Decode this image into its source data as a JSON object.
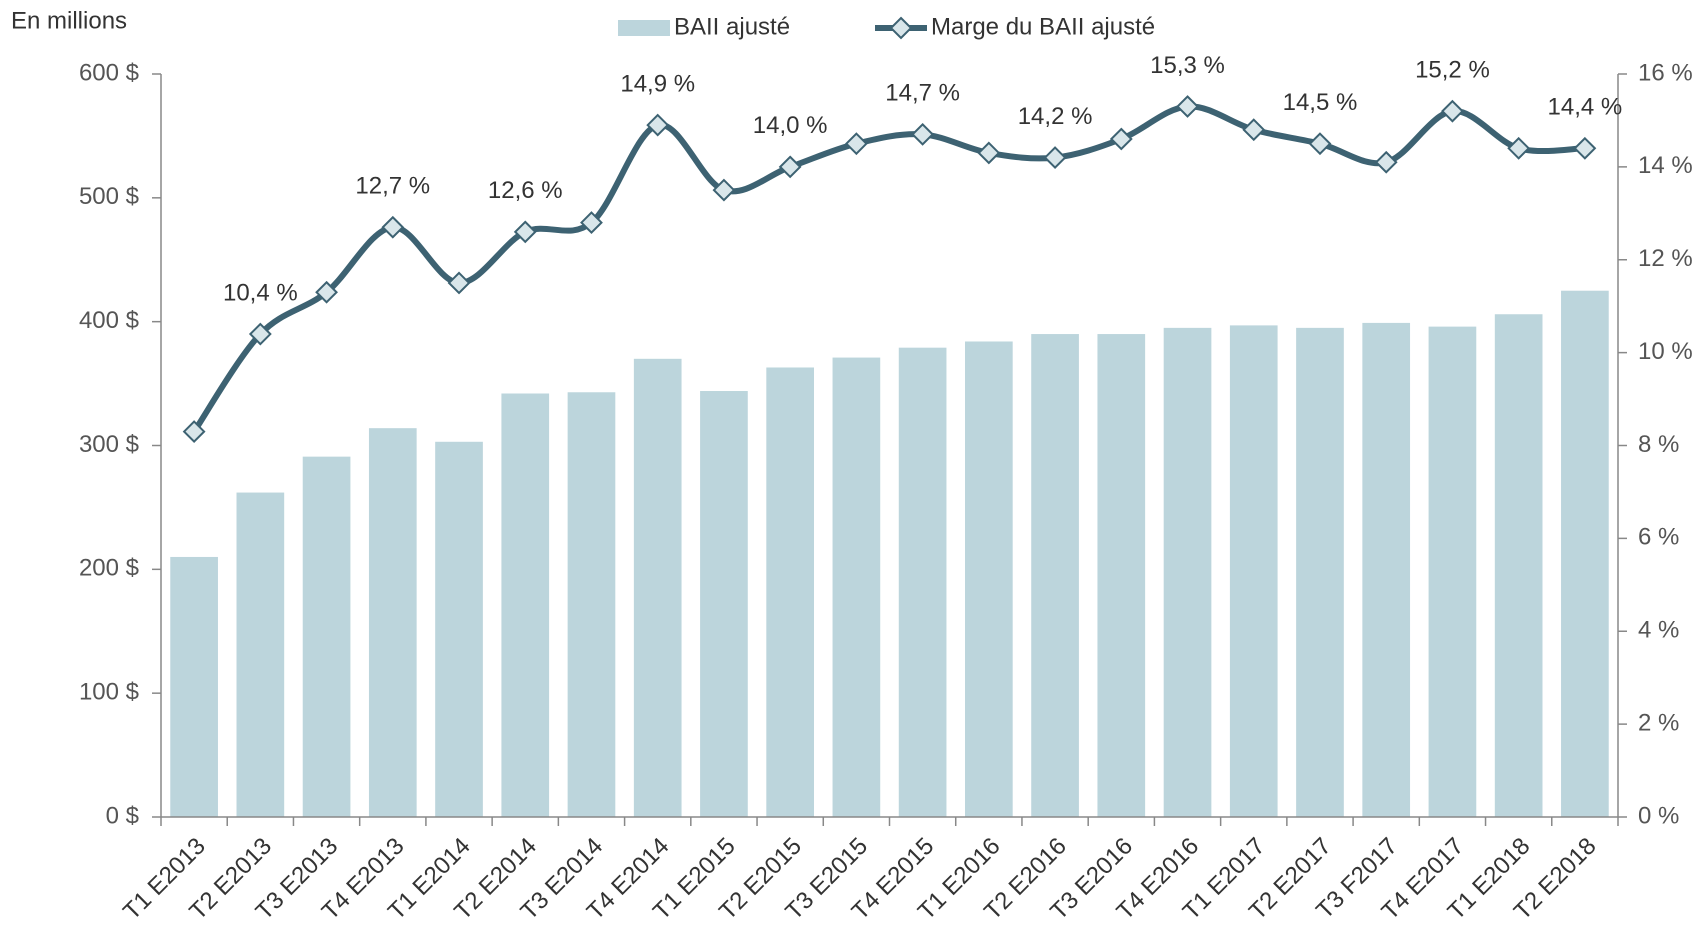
{
  "chart_data": {
    "type": "bar_line",
    "ylabel": "En millions",
    "categories": [
      "T1 E2013",
      "T2 E2013",
      "T3 E2013",
      "T4 E2013",
      "T1 E2014",
      "T2 E2014",
      "T3 E2014",
      "T4 E2014",
      "T1 E2015",
      "T2 E2015",
      "T3 E2015",
      "T4 E2015",
      "T1 E2016",
      "T2 E2016",
      "T3 E2016",
      "T4 E2016",
      "T1 E2017",
      "T2 E2017",
      "T3 F2017",
      "T4 E2017",
      "T1 E2018",
      "T2 E2018"
    ],
    "series": [
      {
        "name": "BAII ajusté",
        "type": "bar",
        "color": "#bcd5dc",
        "values": [
          210,
          262,
          291,
          314,
          303,
          342,
          343,
          370,
          344,
          363,
          371,
          379,
          384,
          390,
          390,
          395,
          397,
          395,
          399,
          396,
          406,
          425
        ]
      },
      {
        "name": "Marge du BAII ajusté",
        "type": "line",
        "axis": "y2",
        "color": "#3d6272",
        "marker_fill": "#d9e6ea",
        "values": [
          8.3,
          10.4,
          11.3,
          12.7,
          11.5,
          12.6,
          12.8,
          14.9,
          13.5,
          14.0,
          14.5,
          14.7,
          14.3,
          14.2,
          14.6,
          15.3,
          14.8,
          14.5,
          14.1,
          15.2,
          14.4,
          14.4
        ],
        "value_labels": [
          null,
          "10,4 %",
          null,
          "12,7 %",
          null,
          "12,6 %",
          null,
          "14,9 %",
          null,
          "14,0 %",
          null,
          "14,7 %",
          null,
          "14,2 %",
          null,
          "15,3 %",
          null,
          "14,5 %",
          null,
          "15,2 %",
          null,
          "14,4 %"
        ]
      }
    ],
    "ylim": [
      0,
      600
    ],
    "yticks": [
      {
        "value": 0,
        "label": "0 $"
      },
      {
        "value": 100,
        "label": "100 $"
      },
      {
        "value": 200,
        "label": "200 $"
      },
      {
        "value": 300,
        "label": "300 $"
      },
      {
        "value": 400,
        "label": "400 $"
      },
      {
        "value": 500,
        "label": "500 $"
      },
      {
        "value": 600,
        "label": "600 $"
      }
    ],
    "y2lim": [
      0,
      16
    ],
    "y2ticks": [
      {
        "value": 0,
        "label": "0 %"
      },
      {
        "value": 2,
        "label": "2 %"
      },
      {
        "value": 4,
        "label": "4 %"
      },
      {
        "value": 6,
        "label": "6 %"
      },
      {
        "value": 8,
        "label": "8 %"
      },
      {
        "value": 10,
        "label": "10 %"
      },
      {
        "value": 12,
        "label": "12 %"
      },
      {
        "value": 14,
        "label": "14 %"
      },
      {
        "value": 16,
        "label": "16 %"
      }
    ],
    "grid": false,
    "legend": "top"
  }
}
